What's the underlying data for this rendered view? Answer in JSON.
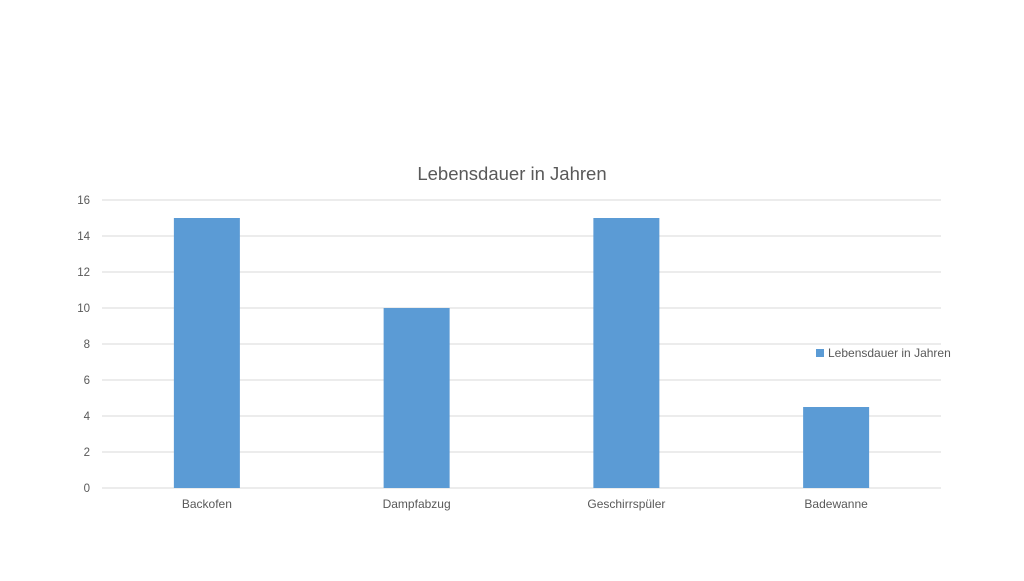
{
  "chart_data": {
    "type": "bar",
    "title": "Lebensdauer in Jahren",
    "categories": [
      "Backofen",
      "Dampfabzug",
      "Geschirrspüler",
      "Badewanne"
    ],
    "series": [
      {
        "name": "Lebensdauer in Jahren",
        "values": [
          15,
          10,
          15,
          4.5
        ],
        "color": "#5b9bd5"
      }
    ],
    "ylim": [
      0,
      16
    ],
    "yticks": [
      0,
      2,
      4,
      6,
      8,
      10,
      12,
      14,
      16
    ],
    "grid": true,
    "legend_position": "right"
  }
}
